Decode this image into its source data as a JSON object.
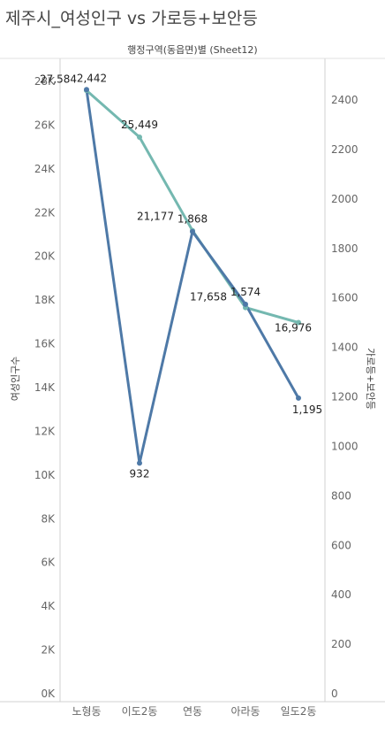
{
  "title": "제주시_여성인구 vs 가로등+보안등",
  "chart_data": {
    "type": "line",
    "header": "행정구역(동읍면)별 (Sheet12)",
    "categories": [
      "노형동",
      "이도2동",
      "연동",
      "아라동",
      "일도2동"
    ],
    "left_axis": {
      "label": "여성인구수",
      "min": 0,
      "max": 28000,
      "ticks": [
        0,
        2000,
        4000,
        6000,
        8000,
        10000,
        12000,
        14000,
        16000,
        18000,
        20000,
        22000,
        24000,
        26000,
        28000
      ],
      "tick_labels": [
        "0K",
        "2K",
        "4K",
        "6K",
        "8K",
        "10K",
        "12K",
        "14K",
        "16K",
        "18K",
        "20K",
        "22K",
        "24K",
        "26K",
        "28K"
      ]
    },
    "right_axis": {
      "label": "가로등+보안등",
      "min": 0,
      "max": 2600,
      "ticks": [
        0,
        200,
        400,
        600,
        800,
        1000,
        1200,
        1400,
        1600,
        1800,
        2000,
        2200,
        2400
      ],
      "tick_labels": [
        "0",
        "200",
        "400",
        "600",
        "800",
        "1000",
        "1200",
        "1400",
        "1600",
        "1800",
        "2000",
        "2200",
        "2400"
      ]
    },
    "series": [
      {
        "name": "여성인구수",
        "axis": "left",
        "color": "#74b8b0",
        "values": [
          27584,
          25449,
          21177,
          17658,
          16976
        ],
        "labels": [
          "27,584",
          "25,449",
          "21,177",
          "17,658",
          "16,976"
        ]
      },
      {
        "name": "가로등+보안등",
        "axis": "right",
        "color": "#4e79a7",
        "values": [
          2442,
          932,
          1868,
          1574,
          1195
        ],
        "labels": [
          "2,442",
          "932",
          "1,868",
          "1,574",
          "1,195"
        ]
      }
    ]
  }
}
